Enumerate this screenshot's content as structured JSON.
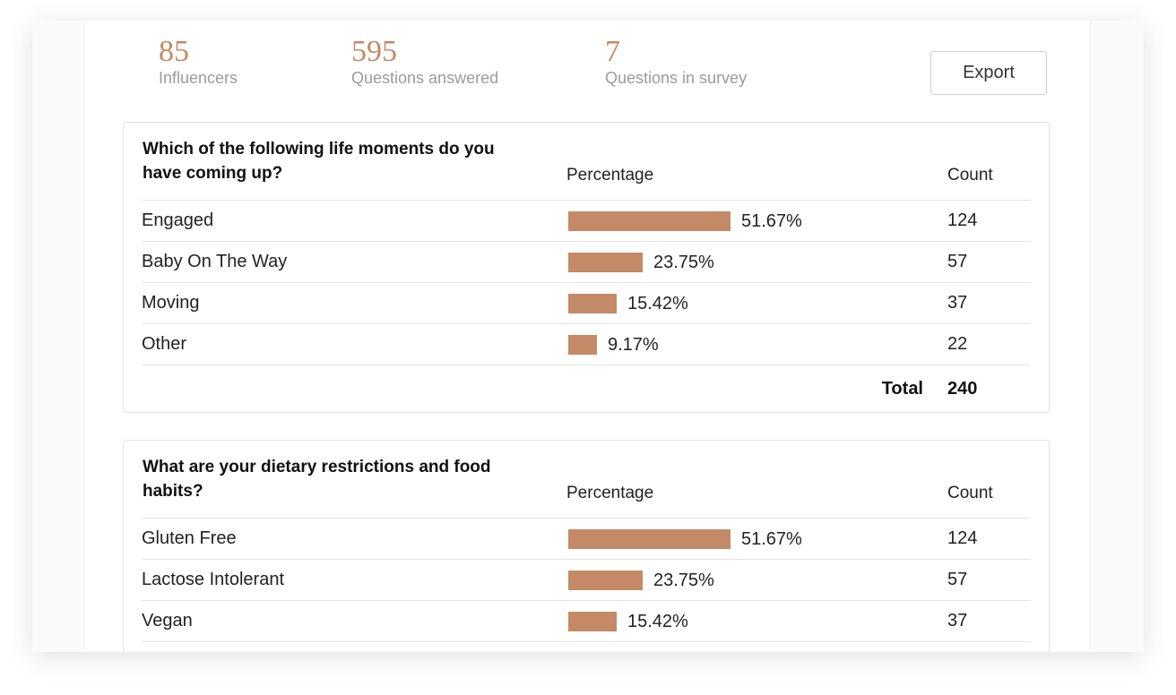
{
  "stats": [
    {
      "value": "85",
      "label": "Influencers"
    },
    {
      "value": "595",
      "label": "Questions answered"
    },
    {
      "value": "7",
      "label": "Questions in survey"
    }
  ],
  "export_label": "Export",
  "columns": {
    "percentage": "Percentage",
    "count": "Count"
  },
  "accent_color": "#c48a67",
  "questions": [
    {
      "title": "Which of the following life moments do you have coming up?",
      "rows": [
        {
          "name": "Engaged",
          "pct_label": "51.67%",
          "pct": 51.67,
          "count": "124"
        },
        {
          "name": "Baby On The Way",
          "pct_label": "23.75%",
          "pct": 23.75,
          "count": "57"
        },
        {
          "name": "Moving",
          "pct_label": "15.42%",
          "pct": 15.42,
          "count": "37"
        },
        {
          "name": "Other",
          "pct_label": "9.17%",
          "pct": 9.17,
          "count": "22"
        }
      ],
      "total_label": "Total",
      "total": "240"
    },
    {
      "title": "What are your dietary restrictions and food habits?",
      "rows": [
        {
          "name": "Gluten Free",
          "pct_label": "51.67%",
          "pct": 51.67,
          "count": "124"
        },
        {
          "name": "Lactose Intolerant",
          "pct_label": "23.75%",
          "pct": 23.75,
          "count": "57"
        },
        {
          "name": "Vegan",
          "pct_label": "15.42%",
          "pct": 15.42,
          "count": "37"
        }
      ]
    }
  ]
}
